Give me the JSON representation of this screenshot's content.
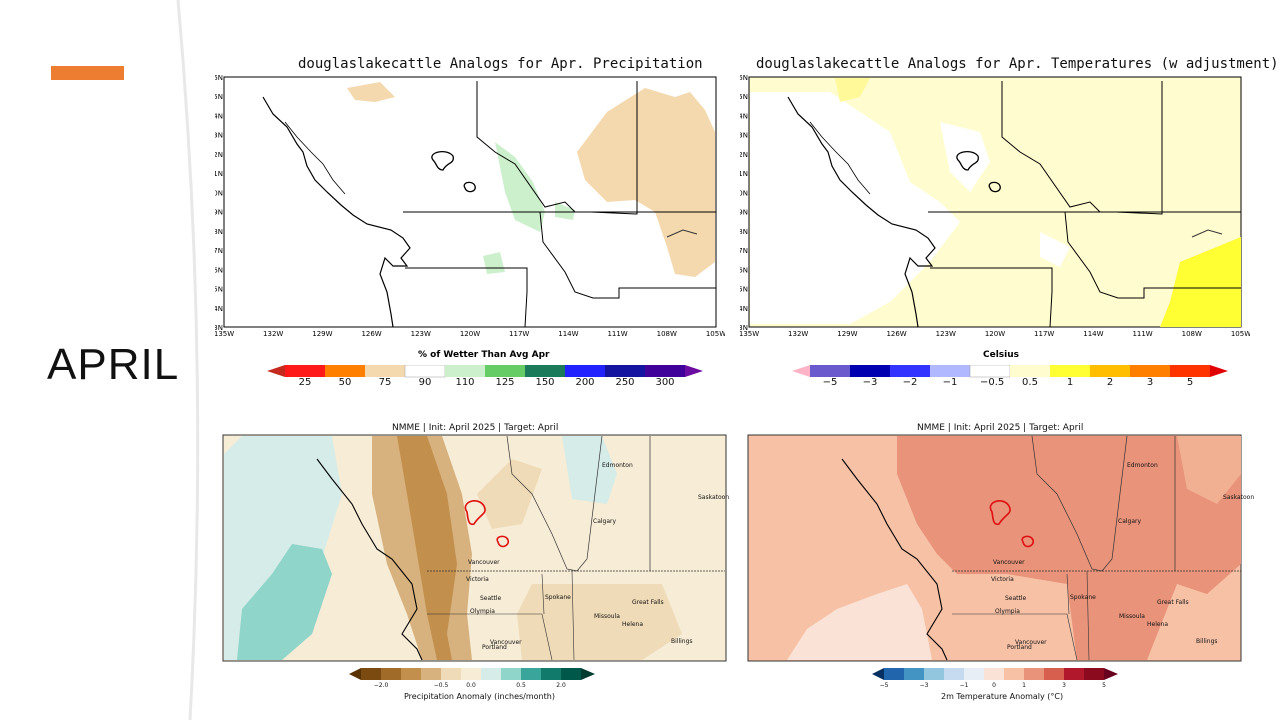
{
  "slide": {
    "title": "APRIL",
    "accent_color": "#ed7d31"
  },
  "maps": {
    "precip_analog": {
      "title": "douglaslakecattle Analogs for Apr. Precipitation",
      "lat_labels": [
        "56N",
        "55N",
        "54N",
        "53N",
        "52N",
        "51N",
        "50N",
        "49N",
        "48N",
        "47N",
        "46N",
        "45N",
        "44N",
        "43N"
      ],
      "lon_labels": [
        "135W",
        "132W",
        "129W",
        "126W",
        "123W",
        "120W",
        "117W",
        "114W",
        "111W",
        "108W",
        "105W"
      ],
      "colorbar_title": "% of Wetter Than Avg Apr",
      "colorbar_ticks": [
        "25",
        "50",
        "75",
        "90",
        "110",
        "125",
        "150",
        "200",
        "250",
        "300"
      ]
    },
    "temp_analog": {
      "title": "douglaslakecattle Analogs for Apr. Temperatures (w adjustment)",
      "lat_labels": [
        "56N",
        "55N",
        "54N",
        "53N",
        "52N",
        "51N",
        "50N",
        "49N",
        "48N",
        "47N",
        "46N",
        "45N",
        "44N",
        "43N"
      ],
      "lon_labels": [
        "135W",
        "132W",
        "129W",
        "126W",
        "123W",
        "120W",
        "117W",
        "114W",
        "111W",
        "108W",
        "105W"
      ],
      "colorbar_title": "Celsius",
      "colorbar_ticks": [
        "−5",
        "−3",
        "−2",
        "−1",
        "−0.5",
        "0.5",
        "1",
        "2",
        "3",
        "5"
      ]
    },
    "nmme_precip": {
      "title": "NMME | Init: April 2025 | Target: April",
      "cities": [
        "Edmonton",
        "Saskatoon",
        "Calgary",
        "Vancouver",
        "Victoria",
        "Seattle",
        "Olympia",
        "Spokane",
        "Great Falls",
        "Missoula",
        "Helena",
        "Billings",
        "Vancouver",
        "Portland"
      ],
      "colorbar_ticks": [
        "−2.0",
        "−0.5",
        "0.0",
        "0.5",
        "2.0"
      ],
      "colorbar_title": "Precipitation Anomaly (inches/month)"
    },
    "nmme_temp": {
      "title": "NMME | Init: April 2025 | Target: April",
      "cities": [
        "Edmonton",
        "Saskatoon",
        "Calgary",
        "Vancouver",
        "Victoria",
        "Seattle",
        "Olympia",
        "Spokane",
        "Great Falls",
        "Missoula",
        "Helena",
        "Billings",
        "Vancouver",
        "Portland"
      ],
      "colorbar_ticks": [
        "−5",
        "−3",
        "−1",
        "0",
        "1",
        "3",
        "5"
      ],
      "colorbar_title": "2m Temperature Anomaly (°C)"
    }
  }
}
